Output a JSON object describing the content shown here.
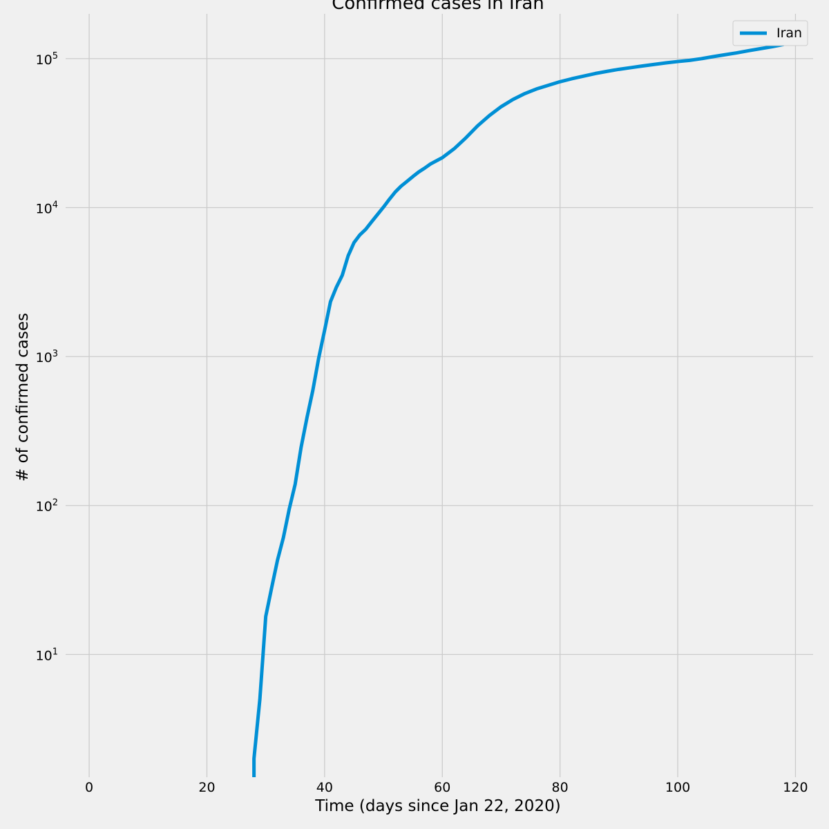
{
  "chart_data": {
    "type": "line",
    "title": "Confirmed cases in Iran",
    "xlabel": "Time (days since Jan 22, 2020)",
    "ylabel": "# of confirmed cases",
    "y_scale": "log",
    "xlim": [
      -4,
      123
    ],
    "ylim": [
      1.5,
      200000
    ],
    "x_ticks": [
      0,
      20,
      40,
      60,
      80,
      100,
      120
    ],
    "x_tick_labels": [
      "0",
      "20",
      "40",
      "60",
      "80",
      "100",
      "120"
    ],
    "y_ticks": [
      10,
      100,
      1000,
      10000,
      100000
    ],
    "y_tick_labels": [
      {
        "base": "10",
        "exp": "1"
      },
      {
        "base": "10",
        "exp": "2"
      },
      {
        "base": "10",
        "exp": "3"
      },
      {
        "base": "10",
        "exp": "4"
      },
      {
        "base": "10",
        "exp": "5"
      }
    ],
    "grid": true,
    "legend_position": "top-right",
    "series": [
      {
        "name": "Iran",
        "color": "#008fd5",
        "x": [
          28,
          28,
          29,
          30,
          31,
          32,
          33,
          34,
          35,
          36,
          37,
          38,
          39,
          40,
          41,
          42,
          43,
          44,
          45,
          46,
          47,
          48,
          49,
          50,
          51,
          52,
          53,
          54,
          55,
          56,
          57,
          58,
          60,
          62,
          64,
          66,
          68,
          70,
          72,
          74,
          76,
          78,
          80,
          82,
          84,
          86,
          88,
          90,
          92,
          94,
          96,
          98,
          100,
          102,
          104,
          106,
          108,
          110,
          112,
          114,
          116,
          118
        ],
        "y": [
          1.5,
          2,
          5,
          18,
          28,
          43,
          61,
          95,
          139,
          245,
          388,
          593,
          978,
          1501,
          2336,
          2922,
          3513,
          4747,
          5823,
          6566,
          7161,
          8042,
          9000,
          10075,
          11364,
          12729,
          13938,
          14991,
          16169,
          17361,
          18407,
          19644,
          21638,
          24811,
          29406,
          35408,
          41495,
          47593,
          53183,
          58226,
          62589,
          66220,
          70029,
          73303,
          76389,
          79494,
          82211,
          84802,
          87026,
          89328,
          91472,
          93657,
          95646,
          97424,
          99970,
          103135,
          106220,
          109286,
          113000,
          116635,
          120198,
          124603
        ]
      }
    ]
  }
}
